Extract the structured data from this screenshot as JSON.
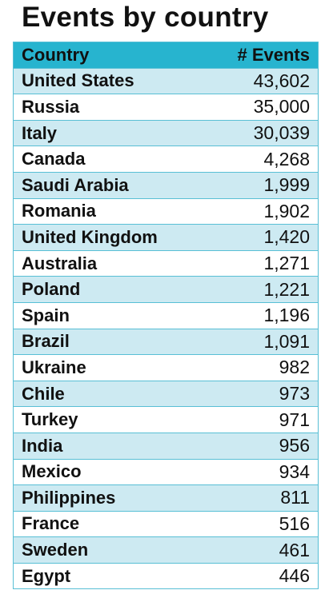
{
  "title": "Events by country",
  "table": {
    "header": [
      "Country",
      "# Events"
    ],
    "rows": [
      [
        "United States",
        "43,602"
      ],
      [
        "Russia",
        "35,000"
      ],
      [
        "Italy",
        "30,039"
      ],
      [
        "Canada",
        "4,268"
      ],
      [
        "Saudi Arabia",
        "1,999"
      ],
      [
        "Romania",
        "1,902"
      ],
      [
        "United Kingdom",
        "1,420"
      ],
      [
        "Australia",
        "1,271"
      ],
      [
        "Poland",
        "1,221"
      ],
      [
        "Spain",
        "1,196"
      ],
      [
        "Brazil",
        "1,091"
      ],
      [
        "Ukraine",
        "982"
      ],
      [
        "Chile",
        "973"
      ],
      [
        "Turkey",
        "971"
      ],
      [
        "India",
        "956"
      ],
      [
        "Mexico",
        "934"
      ],
      [
        "Philippines",
        "811"
      ],
      [
        "France",
        "516"
      ],
      [
        "Sweden",
        "461"
      ],
      [
        "Egypt",
        "446"
      ]
    ]
  }
}
